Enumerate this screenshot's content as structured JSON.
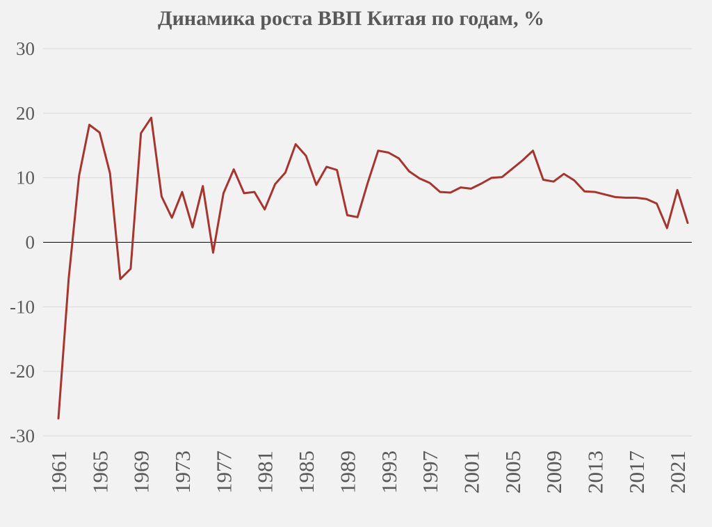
{
  "chart_data": {
    "type": "line",
    "title": "Динамика роста ВВП Китая по годам, %",
    "xlabel": "",
    "ylabel": "",
    "ylim": [
      -30,
      30
    ],
    "yticks": [
      30,
      20,
      10,
      0,
      -10,
      -20,
      -30
    ],
    "ytick_labels": [
      "30",
      "20",
      "10",
      "0",
      "-10",
      "-20",
      "-30"
    ],
    "xtick_labels": [
      "1961",
      "1965",
      "1969",
      "1973",
      "1977",
      "1981",
      "1985",
      "1989",
      "1993",
      "1997",
      "2001",
      "2005",
      "2009",
      "2013",
      "2017",
      "2021"
    ],
    "grid": true,
    "legend": "none",
    "line_color": "#a5352e",
    "x": [
      1961,
      1962,
      1963,
      1964,
      1965,
      1966,
      1967,
      1968,
      1969,
      1970,
      1971,
      1972,
      1973,
      1974,
      1975,
      1976,
      1977,
      1978,
      1979,
      1980,
      1981,
      1982,
      1983,
      1984,
      1985,
      1986,
      1987,
      1988,
      1989,
      1990,
      1991,
      1992,
      1993,
      1994,
      1995,
      1996,
      1997,
      1998,
      1999,
      2000,
      2001,
      2002,
      2003,
      2004,
      2005,
      2006,
      2007,
      2008,
      2009,
      2010,
      2011,
      2012,
      2013,
      2014,
      2015,
      2016,
      2017,
      2018,
      2019,
      2020,
      2021,
      2022
    ],
    "series": [
      {
        "values": [
          -27.3,
          -5.6,
          10.3,
          18.2,
          17.0,
          10.7,
          -5.7,
          -4.1,
          16.9,
          19.3,
          7.1,
          3.8,
          7.8,
          2.3,
          8.7,
          -1.6,
          7.6,
          11.3,
          7.6,
          7.8,
          5.1,
          9.0,
          10.8,
          15.2,
          13.4,
          8.9,
          11.7,
          11.2,
          4.2,
          3.9,
          9.3,
          14.2,
          13.9,
          13.0,
          11.0,
          9.9,
          9.2,
          7.8,
          7.7,
          8.5,
          8.3,
          9.1,
          10.0,
          10.1,
          11.4,
          12.7,
          14.2,
          9.7,
          9.4,
          10.6,
          9.6,
          7.9,
          7.8,
          7.4,
          7.0,
          6.9,
          6.9,
          6.7,
          6.0,
          2.2,
          8.1,
          3.0
        ]
      }
    ]
  }
}
